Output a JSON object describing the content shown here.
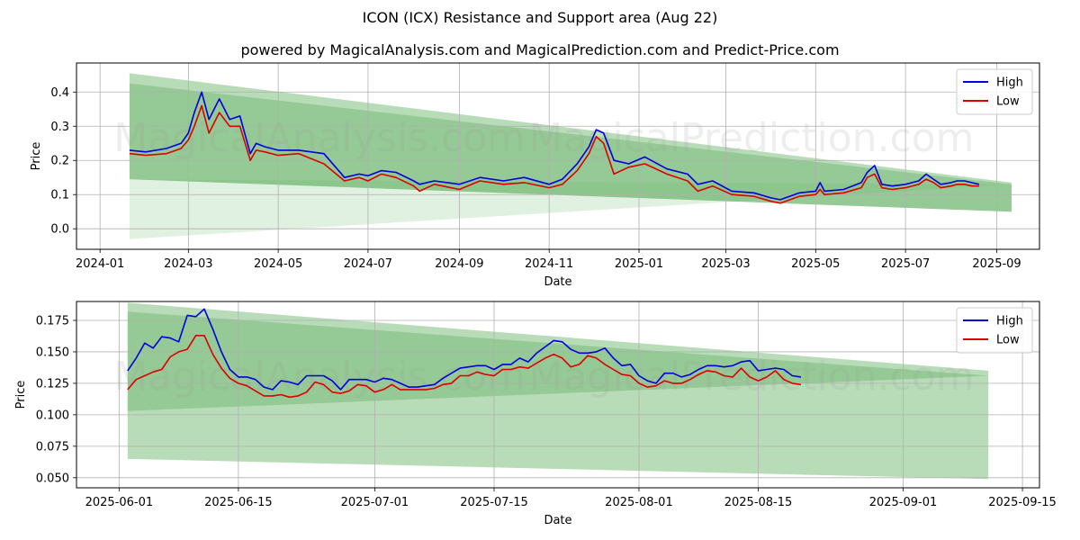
{
  "header": {
    "title": "ICON (ICX) Resistance and Support area (Aug 22)",
    "subtitle": "powered by MagicalAnalysis.com and MagicalPrediction.com and Predict-Price.com"
  },
  "watermarks": [
    "MagicalAnalysis.com",
    "MagicalPrediction.com"
  ],
  "colors": {
    "high": "#0000dd",
    "low": "#dd0000",
    "band_dark": "#72b872",
    "band_light": "#c9e6c9",
    "grid": "#b0b0b0"
  },
  "chart_data": [
    {
      "type": "line",
      "xlabel": "Date",
      "ylabel": "Price",
      "xlim": [
        "2023-12-16",
        "2025-09-30"
      ],
      "ylim": [
        -0.06,
        0.485
      ],
      "x_ticks": [
        "2024-01",
        "2024-03",
        "2024-05",
        "2024-07",
        "2024-09",
        "2024-11",
        "2025-01",
        "2025-03",
        "2025-05",
        "2025-07",
        "2025-09"
      ],
      "y_ticks": [
        "0.0",
        "0.1",
        "0.2",
        "0.3",
        "0.4"
      ],
      "legend": {
        "position": "top-right",
        "entries": [
          "High",
          "Low"
        ]
      },
      "grid": true,
      "bands": [
        {
          "style": "light",
          "x": [
            "2024-01-21",
            "2025-09-11"
          ],
          "upper": [
            0.145,
            0.13
          ],
          "lower": [
            -0.03,
            0.13
          ]
        },
        {
          "style": "dark",
          "x": [
            "2024-01-21",
            "2025-09-11"
          ],
          "upper": [
            0.455,
            0.135
          ],
          "lower": [
            0.145,
            0.05
          ]
        },
        {
          "style": "dark",
          "x": [
            "2024-01-21",
            "2025-09-11"
          ],
          "upper": [
            0.425,
            0.13
          ],
          "lower": [
            0.145,
            0.05
          ]
        }
      ],
      "x": [
        "2024-01-21",
        "2024-02-01",
        "2024-02-15",
        "2024-02-25",
        "2024-03-01",
        "2024-03-05",
        "2024-03-10",
        "2024-03-15",
        "2024-03-22",
        "2024-03-29",
        "2024-04-05",
        "2024-04-12",
        "2024-04-16",
        "2024-04-22",
        "2024-05-01",
        "2024-05-15",
        "2024-06-01",
        "2024-06-15",
        "2024-06-25",
        "2024-07-01",
        "2024-07-10",
        "2024-07-20",
        "2024-08-01",
        "2024-08-05",
        "2024-08-15",
        "2024-09-01",
        "2024-09-15",
        "2024-10-01",
        "2024-10-15",
        "2024-11-01",
        "2024-11-10",
        "2024-11-20",
        "2024-11-28",
        "2024-12-03",
        "2024-12-08",
        "2024-12-15",
        "2024-12-25",
        "2025-01-05",
        "2025-01-20",
        "2025-02-03",
        "2025-02-10",
        "2025-02-20",
        "2025-03-05",
        "2025-03-20",
        "2025-04-01",
        "2025-04-07",
        "2025-04-20",
        "2025-05-01",
        "2025-05-04",
        "2025-05-07",
        "2025-05-20",
        "2025-06-01",
        "2025-06-05",
        "2025-06-10",
        "2025-06-15",
        "2025-06-22",
        "2025-07-01",
        "2025-07-10",
        "2025-07-15",
        "2025-07-20",
        "2025-07-25",
        "2025-08-01",
        "2025-08-05",
        "2025-08-10",
        "2025-08-15",
        "2025-08-20"
      ],
      "series": [
        {
          "name": "High",
          "values": [
            0.23,
            0.225,
            0.235,
            0.25,
            0.28,
            0.34,
            0.4,
            0.32,
            0.38,
            0.32,
            0.33,
            0.22,
            0.25,
            0.24,
            0.23,
            0.23,
            0.22,
            0.15,
            0.16,
            0.155,
            0.17,
            0.165,
            0.14,
            0.13,
            0.14,
            0.13,
            0.15,
            0.14,
            0.15,
            0.13,
            0.145,
            0.19,
            0.24,
            0.29,
            0.28,
            0.2,
            0.19,
            0.21,
            0.175,
            0.16,
            0.13,
            0.14,
            0.11,
            0.105,
            0.09,
            0.085,
            0.105,
            0.11,
            0.135,
            0.11,
            0.115,
            0.135,
            0.165,
            0.185,
            0.13,
            0.125,
            0.13,
            0.14,
            0.16,
            0.145,
            0.13,
            0.135,
            0.14,
            0.14,
            0.135,
            0.13
          ]
        },
        {
          "name": "Low",
          "values": [
            0.22,
            0.215,
            0.22,
            0.235,
            0.26,
            0.3,
            0.36,
            0.28,
            0.34,
            0.3,
            0.3,
            0.2,
            0.23,
            0.225,
            0.215,
            0.22,
            0.19,
            0.14,
            0.15,
            0.14,
            0.16,
            0.15,
            0.125,
            0.11,
            0.13,
            0.115,
            0.14,
            0.13,
            0.135,
            0.12,
            0.13,
            0.17,
            0.22,
            0.27,
            0.25,
            0.16,
            0.18,
            0.19,
            0.16,
            0.14,
            0.11,
            0.125,
            0.1,
            0.095,
            0.08,
            0.075,
            0.095,
            0.1,
            0.115,
            0.1,
            0.105,
            0.12,
            0.15,
            0.16,
            0.12,
            0.115,
            0.12,
            0.13,
            0.145,
            0.135,
            0.12,
            0.125,
            0.13,
            0.13,
            0.125,
            0.125
          ]
        }
      ]
    },
    {
      "type": "line",
      "xlabel": "Date",
      "ylabel": "Price",
      "xlim": [
        "2025-05-27",
        "2025-09-17"
      ],
      "ylim": [
        0.042,
        0.19
      ],
      "x_ticks": [
        "2025-06-01",
        "2025-06-15",
        "2025-07-01",
        "2025-07-15",
        "2025-08-01",
        "2025-08-15",
        "2025-09-01",
        "2025-09-15"
      ],
      "y_ticks": [
        "0.050",
        "0.075",
        "0.100",
        "0.125",
        "0.150",
        "0.175"
      ],
      "legend": {
        "position": "top-right",
        "entries": [
          "High",
          "Low"
        ]
      },
      "grid": true,
      "bands": [
        {
          "style": "dark",
          "x": [
            "2025-06-02",
            "2025-09-11"
          ],
          "upper": [
            0.189,
            0.135
          ],
          "lower": [
            0.065,
            0.049
          ]
        },
        {
          "style": "dark",
          "x": [
            "2025-06-02",
            "2025-09-11"
          ],
          "upper": [
            0.182,
            0.131
          ],
          "lower": [
            0.103,
            0.131
          ]
        }
      ],
      "x": [
        "2025-06-02",
        "2025-06-03",
        "2025-06-04",
        "2025-06-05",
        "2025-06-06",
        "2025-06-07",
        "2025-06-08",
        "2025-06-09",
        "2025-06-10",
        "2025-06-11",
        "2025-06-12",
        "2025-06-13",
        "2025-06-14",
        "2025-06-15",
        "2025-06-16",
        "2025-06-17",
        "2025-06-18",
        "2025-06-19",
        "2025-06-20",
        "2025-06-21",
        "2025-06-22",
        "2025-06-23",
        "2025-06-24",
        "2025-06-25",
        "2025-06-26",
        "2025-06-27",
        "2025-06-28",
        "2025-06-29",
        "2025-06-30",
        "2025-07-01",
        "2025-07-02",
        "2025-07-03",
        "2025-07-04",
        "2025-07-05",
        "2025-07-06",
        "2025-07-07",
        "2025-07-08",
        "2025-07-09",
        "2025-07-10",
        "2025-07-11",
        "2025-07-12",
        "2025-07-13",
        "2025-07-14",
        "2025-07-15",
        "2025-07-16",
        "2025-07-17",
        "2025-07-18",
        "2025-07-19",
        "2025-07-20",
        "2025-07-21",
        "2025-07-22",
        "2025-07-23",
        "2025-07-24",
        "2025-07-25",
        "2025-07-26",
        "2025-07-27",
        "2025-07-28",
        "2025-07-29",
        "2025-07-30",
        "2025-07-31",
        "2025-08-01",
        "2025-08-02",
        "2025-08-03",
        "2025-08-04",
        "2025-08-05",
        "2025-08-06",
        "2025-08-07",
        "2025-08-08",
        "2025-08-09",
        "2025-08-10",
        "2025-08-11",
        "2025-08-12",
        "2025-08-13",
        "2025-08-14",
        "2025-08-15",
        "2025-08-16",
        "2025-08-17",
        "2025-08-18",
        "2025-08-19",
        "2025-08-20"
      ],
      "series": [
        {
          "name": "High",
          "values": [
            0.135,
            0.145,
            0.157,
            0.153,
            0.162,
            0.161,
            0.158,
            0.179,
            0.178,
            0.184,
            0.168,
            0.15,
            0.136,
            0.13,
            0.13,
            0.128,
            0.122,
            0.12,
            0.127,
            0.126,
            0.124,
            0.131,
            0.131,
            0.131,
            0.127,
            0.12,
            0.128,
            0.128,
            0.128,
            0.126,
            0.129,
            0.128,
            0.125,
            0.122,
            0.122,
            0.123,
            0.124,
            0.129,
            0.133,
            0.137,
            0.138,
            0.139,
            0.139,
            0.136,
            0.14,
            0.14,
            0.145,
            0.142,
            0.149,
            0.154,
            0.159,
            0.158,
            0.152,
            0.149,
            0.149,
            0.15,
            0.153,
            0.145,
            0.139,
            0.14,
            0.131,
            0.127,
            0.125,
            0.133,
            0.133,
            0.13,
            0.132,
            0.136,
            0.139,
            0.139,
            0.138,
            0.139,
            0.142,
            0.143,
            0.135,
            0.136,
            0.137,
            0.136,
            0.131,
            0.13
          ]
        },
        {
          "name": "Low",
          "values": [
            0.12,
            0.128,
            0.131,
            0.134,
            0.136,
            0.146,
            0.15,
            0.152,
            0.163,
            0.163,
            0.148,
            0.137,
            0.129,
            0.125,
            0.123,
            0.119,
            0.115,
            0.115,
            0.116,
            0.114,
            0.115,
            0.118,
            0.126,
            0.124,
            0.118,
            0.117,
            0.119,
            0.124,
            0.123,
            0.118,
            0.12,
            0.124,
            0.12,
            0.12,
            0.12,
            0.12,
            0.121,
            0.124,
            0.125,
            0.131,
            0.131,
            0.134,
            0.132,
            0.131,
            0.136,
            0.136,
            0.138,
            0.137,
            0.141,
            0.145,
            0.148,
            0.145,
            0.138,
            0.14,
            0.147,
            0.145,
            0.14,
            0.136,
            0.132,
            0.131,
            0.125,
            0.122,
            0.123,
            0.127,
            0.125,
            0.125,
            0.128,
            0.132,
            0.135,
            0.134,
            0.131,
            0.13,
            0.137,
            0.13,
            0.127,
            0.13,
            0.135,
            0.128,
            0.125,
            0.124
          ]
        }
      ]
    }
  ]
}
